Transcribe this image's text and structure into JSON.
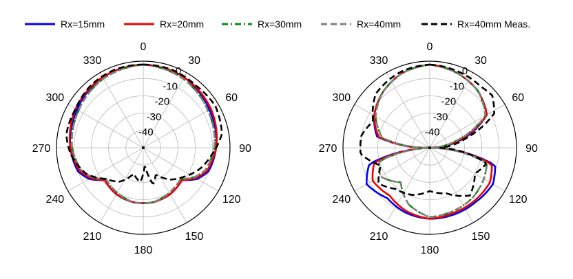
{
  "chart_data": [
    {
      "type": "polar-line",
      "title": "",
      "angle_ticks": [
        "0",
        "30",
        "60",
        "90",
        "120",
        "150",
        "180",
        "210",
        "240",
        "270",
        "300",
        "330"
      ],
      "radial_range": [
        -50,
        0
      ],
      "radial_ticks": [
        "0",
        "-10",
        "-20",
        "-30",
        "-40"
      ],
      "series": [
        {
          "name": "Rx=15mm",
          "color": "#0000ee",
          "dash": "solid",
          "angles": [
            0,
            30,
            60,
            90,
            110,
            120,
            130,
            150,
            170,
            180,
            190,
            210,
            230,
            240,
            250,
            270,
            300,
            330
          ],
          "values": [
            -2,
            -3,
            -6,
            -8,
            -10,
            -14,
            -21,
            -19,
            -18,
            -18,
            -18,
            -19,
            -21,
            -14,
            -10,
            -8,
            -6,
            -3
          ]
        },
        {
          "name": "Rx=20mm",
          "color": "#ee0000",
          "dash": "solid",
          "angles": [
            0,
            30,
            60,
            90,
            110,
            120,
            130,
            150,
            170,
            180,
            190,
            210,
            230,
            240,
            250,
            270,
            300,
            330
          ],
          "values": [
            -2,
            -3,
            -5,
            -8,
            -11,
            -15,
            -21,
            -19,
            -18,
            -18,
            -18,
            -19,
            -21,
            -15,
            -11,
            -8,
            -5,
            -3
          ]
        },
        {
          "name": "Rx=30mm",
          "color": "#118811",
          "dash": "dashdot",
          "angles": [
            0,
            30,
            60,
            90,
            110,
            120,
            130,
            150,
            170,
            180,
            190,
            210,
            230,
            240,
            250,
            270,
            300,
            330
          ],
          "values": [
            -2,
            -4,
            -7,
            -9,
            -12,
            -16,
            -22,
            -20,
            -18,
            -18,
            -18,
            -20,
            -22,
            -16,
            -12,
            -9,
            -7,
            -4
          ]
        },
        {
          "name": "Rx=40mm",
          "color": "#808080",
          "dash": "dash",
          "angles": [
            0,
            30,
            60,
            90,
            110,
            120,
            130,
            150,
            170,
            180,
            190,
            210,
            230,
            240,
            250,
            270,
            300,
            330
          ],
          "values": [
            -2,
            -4,
            -7,
            -9,
            -12,
            -16,
            -22,
            -20,
            -18,
            -18,
            -18,
            -20,
            -22,
            -16,
            -12,
            -9,
            -7,
            -4
          ]
        },
        {
          "name": "Rx=40mm Meas.",
          "color": "#000000",
          "dash": "dash",
          "angles": [
            0,
            20,
            40,
            60,
            80,
            95,
            110,
            125,
            140,
            155,
            165,
            175,
            185,
            200,
            215,
            230,
            245,
            265,
            280,
            300,
            320,
            340
          ],
          "values": [
            -2,
            -2,
            -3,
            -2,
            -4,
            -10,
            -15,
            -21,
            -26,
            -33,
            -28,
            -40,
            -30,
            -34,
            -26,
            -22,
            -14,
            -8,
            -5,
            -5,
            -3,
            -2
          ]
        }
      ]
    },
    {
      "type": "polar-line",
      "title": "",
      "angle_ticks": [
        "0",
        "30",
        "60",
        "90",
        "120",
        "150",
        "180",
        "210",
        "240",
        "270",
        "300",
        "330"
      ],
      "radial_range": [
        -50,
        0
      ],
      "radial_ticks": [
        "0",
        "-10",
        "-20",
        "-30",
        "-40"
      ],
      "series": [
        {
          "name": "Rx=15mm",
          "color": "#0000ee",
          "dash": "solid",
          "angles": [
            0,
            20,
            40,
            60,
            75,
            90,
            105,
            120,
            140,
            160,
            180,
            200,
            220,
            240,
            255,
            268,
            282,
            300,
            320,
            340
          ],
          "values": [
            -2,
            -4,
            -7,
            -12,
            -30,
            -50,
            -11,
            -8,
            -9,
            -9,
            -9,
            -10,
            -12,
            -8,
            -14,
            -50,
            -19,
            -13,
            -8,
            -4
          ]
        },
        {
          "name": "Rx=20mm",
          "color": "#ee0000",
          "dash": "solid",
          "angles": [
            0,
            20,
            40,
            60,
            75,
            90,
            105,
            120,
            140,
            160,
            180,
            200,
            220,
            240,
            255,
            268,
            282,
            300,
            320,
            340
          ],
          "values": [
            -2,
            -4,
            -7,
            -12,
            -32,
            -50,
            -13,
            -10,
            -10,
            -10,
            -9,
            -11,
            -14,
            -12,
            -17,
            -50,
            -20,
            -13,
            -8,
            -4
          ]
        },
        {
          "name": "Rx=30mm",
          "color": "#118811",
          "dash": "dashdot",
          "angles": [
            0,
            20,
            40,
            60,
            75,
            90,
            105,
            120,
            140,
            160,
            180,
            200,
            220,
            240,
            255,
            268,
            282,
            300,
            320,
            340
          ],
          "values": [
            -2,
            -4,
            -7,
            -13,
            -34,
            -50,
            -16,
            -14,
            -12,
            -11,
            -10,
            -15,
            -24,
            -17,
            -20,
            -50,
            -22,
            -14,
            -8,
            -4
          ]
        },
        {
          "name": "Rx=40mm",
          "color": "#808080",
          "dash": "dash",
          "angles": [
            0,
            20,
            40,
            60,
            75,
            90,
            105,
            120,
            140,
            160,
            180,
            200,
            220,
            240,
            255,
            268,
            282,
            300,
            320,
            340
          ],
          "values": [
            -2,
            -4,
            -7,
            -13,
            -34,
            -50,
            -16,
            -14,
            -12,
            -11,
            -10,
            -15,
            -24,
            -17,
            -20,
            -50,
            -22,
            -14,
            -8,
            -4
          ]
        },
        {
          "name": "Rx=40mm Meas.",
          "color": "#000000",
          "dash": "dash",
          "angles": [
            0,
            20,
            40,
            50,
            62,
            75,
            90,
            105,
            120,
            140,
            160,
            180,
            200,
            220,
            235,
            250,
            265,
            280,
            295,
            315,
            340
          ],
          "values": [
            -2,
            -3,
            -4,
            -3,
            -8,
            -28,
            -44,
            -16,
            -20,
            -14,
            -22,
            -25,
            -21,
            -19,
            -14,
            -20,
            -10,
            -10,
            -14,
            -6,
            -3
          ]
        }
      ]
    }
  ]
}
